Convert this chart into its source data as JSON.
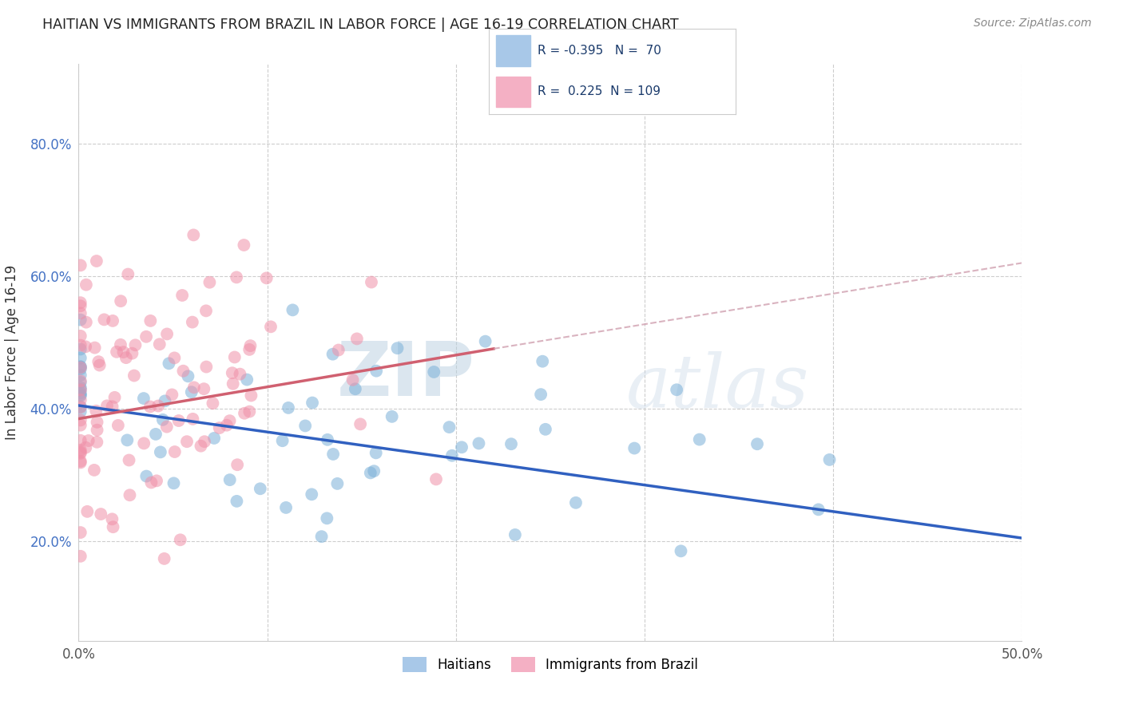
{
  "title": "HAITIAN VS IMMIGRANTS FROM BRAZIL IN LABOR FORCE | AGE 16-19 CORRELATION CHART",
  "source": "Source: ZipAtlas.com",
  "ylabel": "In Labor Force | Age 16-19",
  "xlim": [
    0.0,
    0.5
  ],
  "ylim": [
    0.05,
    0.92
  ],
  "x_ticks": [
    0.0,
    0.1,
    0.2,
    0.3,
    0.4,
    0.5
  ],
  "x_tick_labels": [
    "0.0%",
    "",
    "",
    "",
    "",
    "50.0%"
  ],
  "y_ticks": [
    0.2,
    0.4,
    0.6,
    0.8
  ],
  "y_tick_labels_right": [
    "20.0%",
    "40.0%",
    "60.0%",
    "80.0%"
  ],
  "haitians_R": -0.395,
  "haitians_N": 70,
  "brazil_R": 0.225,
  "brazil_N": 109,
  "legend_color_haitian": "#a8c8e8",
  "legend_color_brazil": "#f4b0c4",
  "scatter_color_haitian": "#7ab0d8",
  "scatter_color_brazil": "#f090a8",
  "line_color_haitian": "#3060c0",
  "line_color_brazil": "#d06070",
  "dashed_line_color": "#d0a0b0",
  "watermark": "ZIPatlas",
  "watermark_zip": "ZIP",
  "watermark_atlas": "atlas"
}
